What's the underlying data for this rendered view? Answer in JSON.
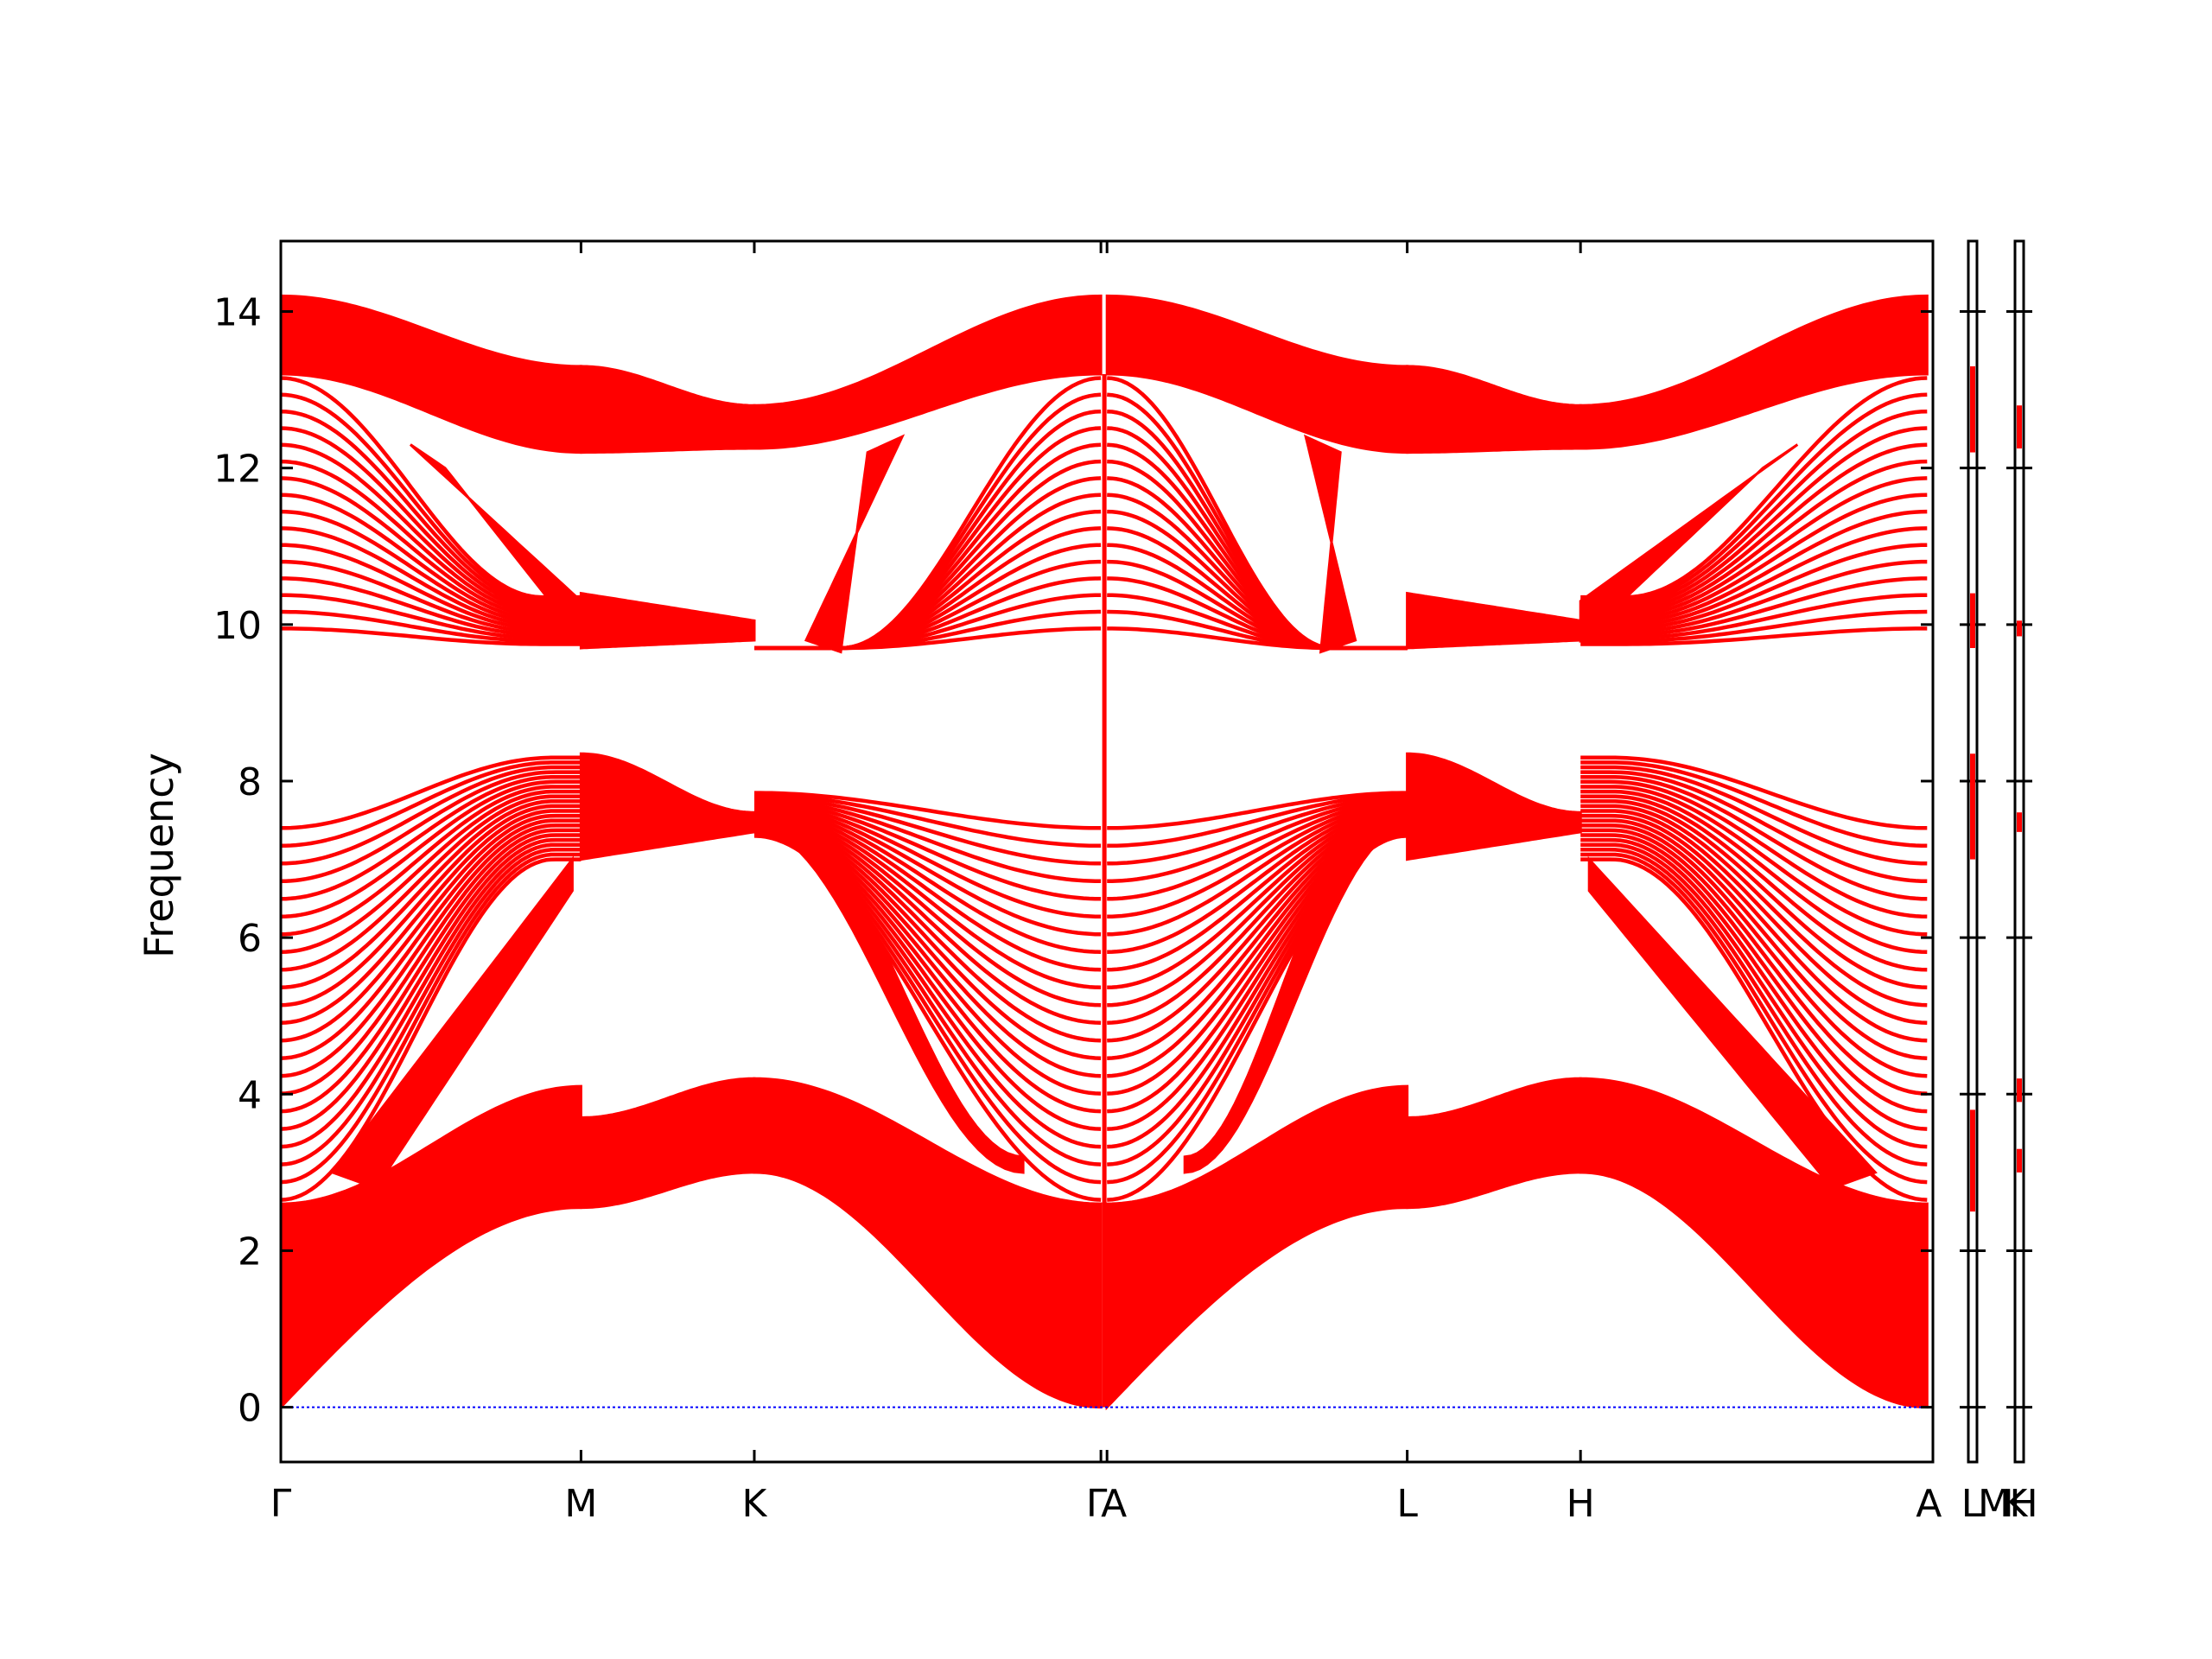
{
  "chart_data": {
    "type": "line",
    "title": "",
    "xlabel": "",
    "ylabel": "Frequency",
    "ylim": [
      -0.7,
      14.9
    ],
    "yticks": [
      0,
      2,
      4,
      6,
      8,
      10,
      12,
      14
    ],
    "grid": false,
    "legend": "none",
    "path_labels": [
      "Γ",
      "M",
      "K",
      "Γ",
      "A",
      "L",
      "H",
      "A",
      "L",
      "M",
      "K",
      "H"
    ],
    "path_points": [
      0,
      0.1817,
      0.2866,
      0.4964,
      0.5001,
      0.6818,
      0.7867,
      0.9965,
      1.0
    ],
    "zero_line": {
      "y": 0,
      "color": "#0000ff"
    },
    "band_color": "#ff0000",
    "frame_color": "#000000",
    "envelope_keypoints": [
      {
        "x": "Γ",
        "optical_top": 14.2,
        "optical_bottom": 13.2,
        "gap_low_top": 7.4,
        "acoustic_floor": 0.0
      },
      {
        "x": "M",
        "optical_top": 13.3,
        "optical_bottom": 12.2,
        "gap_low_top": 8.35,
        "acoustic_floor": 2.55
      },
      {
        "x": "K",
        "optical_top": 12.8,
        "optical_bottom": 12.25,
        "gap_low_top": 7.6,
        "acoustic_floor": 3.0
      },
      {
        "x": "Γ",
        "optical_top": 14.2,
        "optical_bottom": 13.2,
        "gap_low_top": 7.4,
        "acoustic_floor": 0.0
      },
      {
        "x": "L",
        "optical_top": 13.3,
        "optical_bottom": 12.2,
        "gap_low_top": 8.35,
        "acoustic_floor": 2.55
      },
      {
        "x": "H",
        "optical_top": 12.8,
        "optical_bottom": 12.25,
        "gap_low_top": 7.6,
        "acoustic_floor": 3.0
      },
      {
        "x": "A",
        "optical_top": 14.2,
        "optical_bottom": 13.2,
        "gap_low_top": 7.4,
        "acoustic_floor": 0.0
      }
    ],
    "side_panels": [
      {
        "segments": [
          [
            12.2,
            13.3
          ],
          [
            9.7,
            10.4
          ],
          [
            7.0,
            8.35
          ],
          [
            2.5,
            3.8
          ]
        ]
      },
      {
        "segments": [
          [
            12.25,
            12.8
          ],
          [
            9.85,
            10.05
          ],
          [
            7.35,
            7.6
          ],
          [
            3.9,
            4.2
          ],
          [
            3.0,
            3.3
          ]
        ]
      }
    ]
  }
}
